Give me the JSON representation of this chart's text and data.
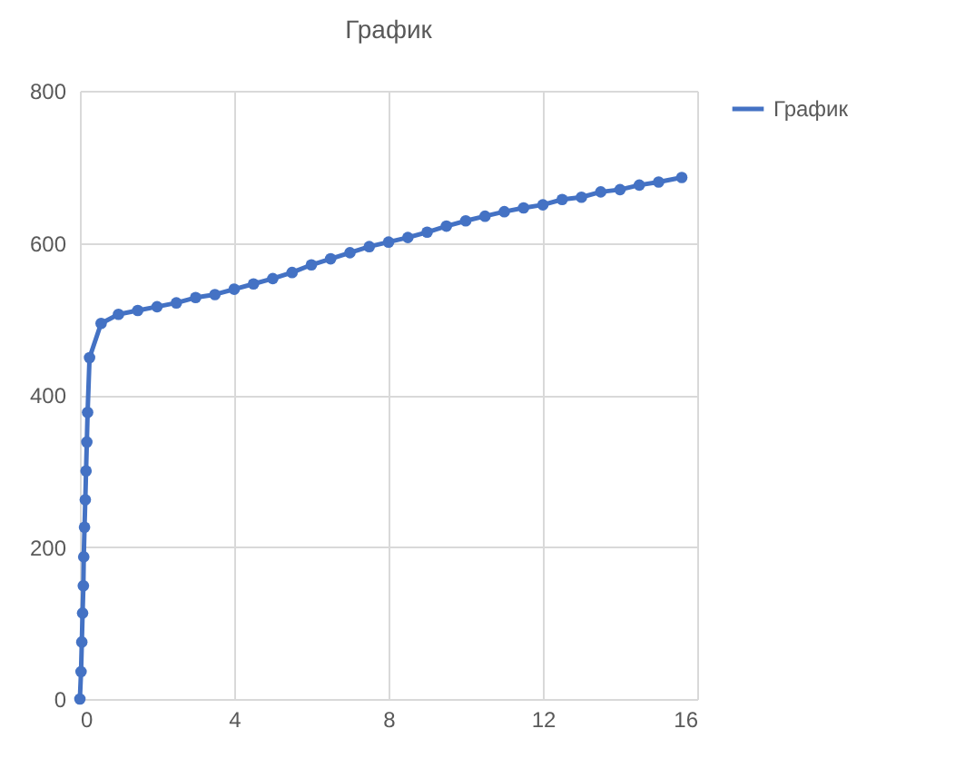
{
  "chart_data": {
    "type": "line",
    "title": "График",
    "xlim": [
      0,
      16
    ],
    "xticks": [
      0,
      4,
      8,
      12,
      16
    ],
    "ylim": [
      0,
      800
    ],
    "yticks": [
      0,
      200,
      400,
      600,
      800
    ],
    "grid": true,
    "legend": "right",
    "marker": "circle",
    "line_style": "solid",
    "series": [
      {
        "name": "График",
        "color": "#4472c4",
        "x": [
          0,
          0.03,
          0.05,
          0.07,
          0.09,
          0.1,
          0.12,
          0.14,
          0.16,
          0.18,
          0.2,
          0.25,
          0.55,
          1,
          1.5,
          2,
          2.5,
          3,
          3.5,
          4,
          4.5,
          5,
          5.5,
          6,
          6.5,
          7,
          7.5,
          8,
          8.5,
          9,
          9.5,
          10,
          10.5,
          11,
          11.5,
          12,
          12.5,
          13,
          13.5,
          14,
          14.5,
          15,
          15.6
        ],
        "values": [
          0,
          36,
          75,
          113,
          149,
          187,
          226,
          262,
          300,
          338,
          377,
          449,
          494,
          506,
          511,
          516,
          521,
          528,
          532,
          539,
          546,
          553,
          561,
          571,
          579,
          587,
          595,
          601,
          607,
          614,
          622,
          629,
          635,
          641,
          646,
          650,
          657,
          660,
          667,
          670,
          676,
          680,
          686
        ]
      }
    ]
  }
}
